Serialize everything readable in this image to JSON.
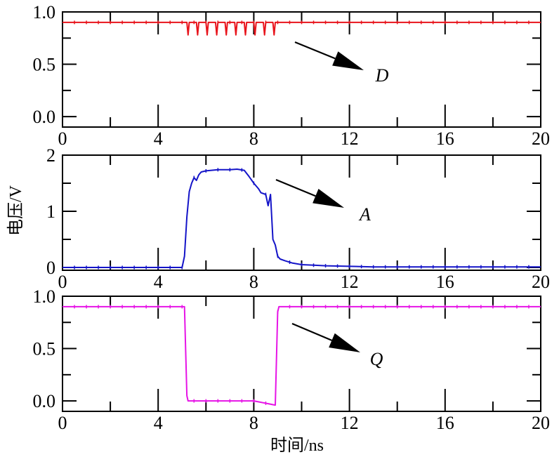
{
  "chart_data": [
    {
      "type": "line",
      "id": "D",
      "color": "#e8141c",
      "xlim": [
        0,
        20
      ],
      "ylim": [
        -0.1,
        1.0
      ],
      "xticks": [
        "0",
        "4",
        "8",
        "12",
        "16",
        "20"
      ],
      "yticks": [
        "0.0",
        "0.5",
        "1.0"
      ],
      "annotation": "D",
      "series": [
        {
          "x": [
            0,
            5.2,
            5.25,
            5.3,
            5.6,
            5.65,
            5.7,
            6.0,
            6.05,
            6.1,
            6.4,
            6.45,
            6.5,
            6.8,
            6.85,
            6.9,
            7.2,
            7.25,
            7.3,
            7.6,
            7.65,
            7.7,
            8.0,
            8.05,
            8.1,
            8.4,
            8.45,
            8.5,
            8.8,
            8.85,
            8.9,
            20
          ],
          "y": [
            0.9,
            0.9,
            0.78,
            0.9,
            0.9,
            0.78,
            0.9,
            0.9,
            0.78,
            0.9,
            0.9,
            0.78,
            0.9,
            0.9,
            0.78,
            0.9,
            0.9,
            0.78,
            0.9,
            0.9,
            0.78,
            0.9,
            0.9,
            0.78,
            0.9,
            0.9,
            0.78,
            0.9,
            0.9,
            0.78,
            0.9,
            0.9
          ]
        }
      ]
    },
    {
      "type": "line",
      "id": "A",
      "color": "#1414c8",
      "xlim": [
        0,
        20
      ],
      "ylim": [
        -0.05,
        2.0
      ],
      "xticks": [
        "0",
        "4",
        "8",
        "12",
        "16",
        "20"
      ],
      "yticks": [
        "0",
        "1",
        "2"
      ],
      "ylabel": "电压/V",
      "annotation": "A",
      "series": [
        {
          "x": [
            0,
            5.0,
            5.1,
            5.2,
            5.3,
            5.4,
            5.5,
            5.6,
            5.7,
            5.8,
            6.0,
            6.5,
            7.0,
            7.3,
            7.6,
            7.8,
            8.0,
            8.2,
            8.3,
            8.5,
            8.6,
            8.7,
            8.8,
            8.9,
            9.0,
            9.1,
            9.3,
            9.6,
            10.0,
            10.5,
            11.0,
            12.0,
            13.0,
            14.0,
            20
          ],
          "y": [
            0,
            0,
            0.2,
            0.9,
            1.35,
            1.5,
            1.6,
            1.55,
            1.65,
            1.7,
            1.72,
            1.74,
            1.74,
            1.75,
            1.73,
            1.62,
            1.5,
            1.4,
            1.33,
            1.3,
            1.1,
            1.3,
            0.5,
            0.4,
            0.2,
            0.15,
            0.12,
            0.08,
            0.05,
            0.04,
            0.03,
            0.02,
            0.01,
            0.01,
            0.01
          ]
        }
      ]
    },
    {
      "type": "line",
      "id": "Q",
      "color": "#e614e6",
      "xlim": [
        0,
        20
      ],
      "ylim": [
        -0.1,
        1.0
      ],
      "xticks": [
        "0",
        "4",
        "8",
        "12",
        "16",
        "20"
      ],
      "yticks": [
        "0.0",
        "0.5",
        "1.0"
      ],
      "xlabel": "时间/ns",
      "annotation": "Q",
      "series": [
        {
          "x": [
            0,
            5.1,
            5.2,
            5.25,
            6,
            7,
            8,
            8.9,
            9.0,
            9.05,
            20
          ],
          "y": [
            0.9,
            0.9,
            0.05,
            0.0,
            0.0,
            0.0,
            0.0,
            -0.04,
            0.85,
            0.9,
            0.9
          ]
        }
      ]
    }
  ]
}
